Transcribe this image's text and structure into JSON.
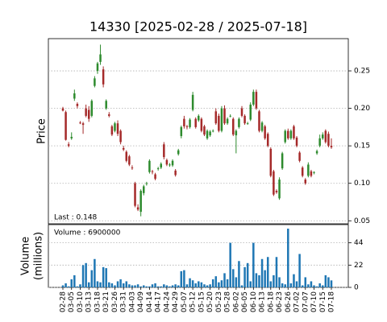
{
  "chart_data": {
    "type": "candlestick",
    "title": "14330   [2025-02-28 / 2025-07-18]",
    "ylabel": "Price",
    "volume_ylabel": [
      "Volume",
      "(millions)"
    ],
    "last_annotation": "Last : 0.148",
    "volume_annotation": "Volume : 6900000",
    "up_color": "#2e8b2e",
    "down_color": "#a52a2a",
    "volume_color": "#1f77b4",
    "grid": true,
    "categories": [
      "02-28",
      null,
      null,
      "03-05",
      null,
      null,
      "03-10",
      null,
      null,
      "03-13",
      null,
      null,
      "03-18",
      null,
      null,
      "03-21",
      null,
      null,
      "03-26",
      null,
      null,
      "03-31",
      null,
      null,
      "04-03",
      null,
      null,
      "04-09",
      null,
      null,
      "04-14",
      null,
      null,
      "04-17",
      null,
      null,
      "04-24",
      null,
      null,
      "04-29",
      null,
      null,
      "05-07",
      null,
      null,
      "05-12",
      null,
      null,
      "05-15",
      null,
      null,
      "05-20",
      null,
      null,
      "05-23",
      null,
      null,
      "05-28",
      null,
      null,
      "06-02",
      null,
      null,
      "06-05",
      null,
      null,
      "06-10",
      null,
      null,
      "06-13",
      null,
      null,
      "06-18",
      null,
      null,
      "06-23",
      null,
      null,
      "06-26",
      null,
      null,
      "07-02",
      null,
      null,
      "07-07",
      null,
      null,
      "07-10",
      null,
      null,
      "07-15",
      null,
      null,
      "07-18"
    ],
    "open": [
      0.2,
      0.195,
      0.152,
      0.16,
      0.213,
      0.206,
      0.181,
      0.18,
      0.2,
      0.198,
      0.19,
      0.23,
      0.25,
      0.262,
      0.252,
      0.2,
      0.192,
      0.176,
      0.17,
      0.18,
      0.17,
      0.147,
      0.142,
      0.136,
      0.121,
      0.1,
      0.068,
      0.062,
      0.087,
      0.1,
      0.115,
      0.116,
      0.112,
      0.119,
      0.121,
      0.152,
      0.131,
      0.124,
      0.124,
      0.117,
      0.139,
      0.163,
      0.186,
      0.176,
      0.175,
      0.198,
      0.186,
      0.184,
      0.186,
      0.176,
      0.16,
      0.164,
      0.17,
      0.196,
      0.19,
      0.17,
      0.2,
      0.18,
      0.19,
      0.186,
      0.164,
      0.175,
      0.2,
      0.19,
      0.18,
      0.185,
      0.205,
      0.222,
      0.196,
      0.17,
      0.176,
      0.166,
      0.146,
      0.116,
      0.09,
      0.08,
      0.12,
      0.155,
      0.17,
      0.16,
      0.176,
      0.161,
      0.141,
      0.121,
      0.105,
      0.11,
      0.116,
      0.114,
      0.14,
      0.15,
      0.16,
      0.17,
      0.166,
      0.15
    ],
    "high": [
      0.202,
      0.197,
      0.155,
      0.168,
      0.225,
      0.208,
      0.183,
      0.182,
      0.205,
      0.203,
      0.212,
      0.243,
      0.262,
      0.285,
      0.256,
      0.212,
      0.195,
      0.178,
      0.182,
      0.184,
      0.172,
      0.15,
      0.144,
      0.138,
      0.124,
      0.102,
      0.072,
      0.092,
      0.098,
      0.102,
      0.132,
      0.118,
      0.114,
      0.122,
      0.128,
      0.155,
      0.133,
      0.127,
      0.132,
      0.119,
      0.146,
      0.177,
      0.19,
      0.178,
      0.187,
      0.222,
      0.188,
      0.192,
      0.188,
      0.178,
      0.172,
      0.171,
      0.172,
      0.2,
      0.193,
      0.203,
      0.204,
      0.188,
      0.192,
      0.188,
      0.172,
      0.188,
      0.203,
      0.192,
      0.182,
      0.208,
      0.225,
      0.225,
      0.198,
      0.183,
      0.178,
      0.168,
      0.148,
      0.118,
      0.092,
      0.108,
      0.142,
      0.172,
      0.173,
      0.172,
      0.178,
      0.163,
      0.143,
      0.123,
      0.107,
      0.128,
      0.118,
      0.116,
      0.145,
      0.165,
      0.168,
      0.172,
      0.169,
      0.16
    ],
    "low": [
      0.196,
      0.157,
      0.148,
      0.158,
      0.21,
      0.2,
      0.179,
      0.166,
      0.188,
      0.182,
      0.188,
      0.228,
      0.246,
      0.258,
      0.228,
      0.198,
      0.188,
      0.163,
      0.168,
      0.163,
      0.152,
      0.143,
      0.128,
      0.123,
      0.118,
      0.068,
      0.063,
      0.056,
      0.084,
      0.097,
      0.113,
      0.112,
      0.104,
      0.117,
      0.119,
      0.132,
      0.123,
      0.122,
      0.122,
      0.109,
      0.137,
      0.16,
      0.173,
      0.172,
      0.173,
      0.196,
      0.173,
      0.182,
      0.168,
      0.163,
      0.158,
      0.162,
      0.168,
      0.178,
      0.168,
      0.168,
      0.178,
      0.178,
      0.188,
      0.163,
      0.14,
      0.173,
      0.188,
      0.178,
      0.178,
      0.183,
      0.203,
      0.198,
      0.168,
      0.168,
      0.158,
      0.148,
      0.108,
      0.083,
      0.086,
      0.078,
      0.118,
      0.153,
      0.158,
      0.158,
      0.158,
      0.148,
      0.128,
      0.108,
      0.098,
      0.108,
      0.108,
      0.112,
      0.138,
      0.148,
      0.158,
      0.153,
      0.148,
      0.146
    ],
    "close": [
      0.197,
      0.158,
      0.15,
      0.162,
      0.22,
      0.203,
      0.18,
      0.178,
      0.19,
      0.186,
      0.21,
      0.24,
      0.26,
      0.272,
      0.232,
      0.21,
      0.19,
      0.165,
      0.18,
      0.166,
      0.155,
      0.145,
      0.13,
      0.125,
      0.12,
      0.07,
      0.065,
      0.09,
      0.096,
      0.1,
      0.13,
      0.115,
      0.106,
      0.12,
      0.126,
      0.135,
      0.125,
      0.125,
      0.13,
      0.111,
      0.144,
      0.175,
      0.176,
      0.175,
      0.185,
      0.218,
      0.175,
      0.19,
      0.17,
      0.165,
      0.17,
      0.169,
      0.17,
      0.18,
      0.17,
      0.2,
      0.18,
      0.186,
      0.19,
      0.165,
      0.17,
      0.186,
      0.19,
      0.18,
      0.18,
      0.205,
      0.222,
      0.2,
      0.17,
      0.181,
      0.16,
      0.15,
      0.11,
      0.085,
      0.088,
      0.105,
      0.14,
      0.17,
      0.16,
      0.17,
      0.16,
      0.15,
      0.13,
      0.11,
      0.1,
      0.125,
      0.11,
      0.115,
      0.143,
      0.16,
      0.165,
      0.155,
      0.15,
      0.148
    ],
    "volume": [
      2,
      4,
      1,
      8,
      12,
      1,
      3,
      22,
      24,
      5,
      17,
      28,
      6,
      5,
      20,
      19,
      5,
      4,
      2,
      6,
      8,
      4,
      6,
      3,
      2,
      2,
      3,
      1,
      2,
      1,
      1,
      3,
      4,
      1,
      1,
      3,
      2,
      1,
      2,
      3,
      2,
      16,
      17,
      3,
      9,
      7,
      4,
      6,
      5,
      3,
      2,
      3,
      8,
      11,
      5,
      7,
      14,
      8,
      44,
      18,
      10,
      26,
      2,
      20,
      24,
      6,
      44,
      14,
      12,
      28,
      17,
      30,
      6,
      12,
      30,
      10,
      4,
      3,
      58,
      4,
      13,
      6,
      33,
      2,
      10,
      3,
      6,
      2,
      1,
      4,
      2,
      12,
      10,
      6.9
    ],
    "ylim": [
      0.046,
      0.293
    ],
    "yticks": [
      0.05,
      {
        "value": 0.1,
        "label": "0.10"
      },
      0.15,
      {
        "value": 0.2,
        "label": "0.20"
      },
      0.25
    ],
    "volume_ylim": [
      0,
      62
    ],
    "volume_yticks": [
      0,
      22,
      44
    ]
  }
}
